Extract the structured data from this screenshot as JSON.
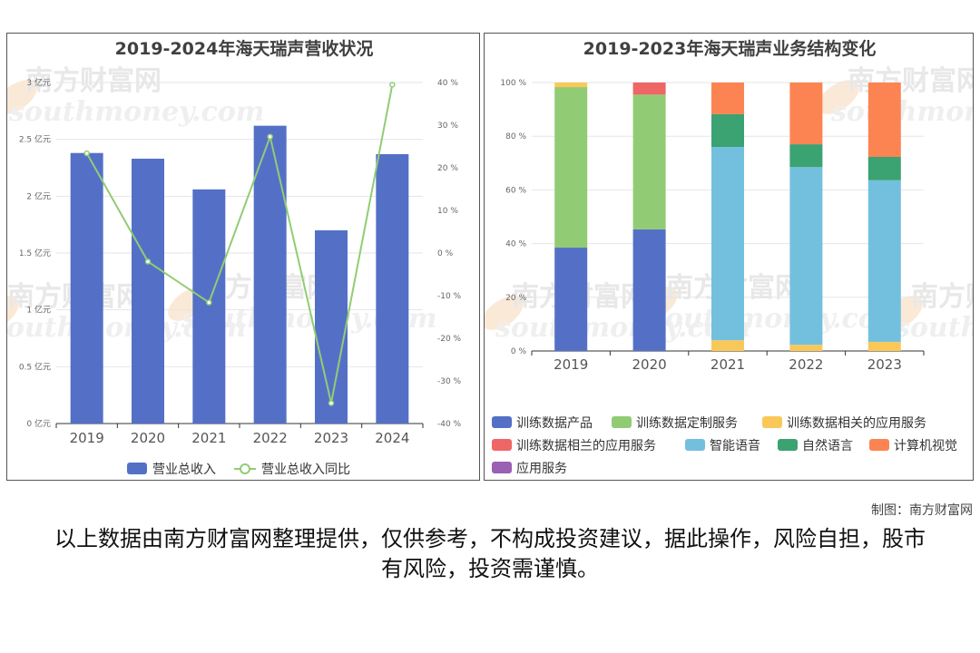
{
  "chart_data": [
    {
      "type": "bar",
      "title": "2019-2024年海天瑞声营收状况",
      "categories": [
        "2019",
        "2020",
        "2021",
        "2022",
        "2023",
        "2024"
      ],
      "y_ticks_left": [
        "0 亿元",
        "0.5 亿元",
        "1 亿元",
        "1.5 亿元",
        "2 亿元",
        "2.5 亿元",
        "3 亿元"
      ],
      "y_ticks_right": [
        "-40 %",
        "-30 %",
        "-20 %",
        "-10 %",
        "0 %",
        "10 %",
        "20 %",
        "30 %",
        "40 %"
      ],
      "ylim_left": [
        0,
        3
      ],
      "ylim_right": [
        -40,
        40
      ],
      "series": [
        {
          "name": "营业总收入",
          "type": "bar",
          "values": [
            2.38,
            2.33,
            2.06,
            2.62,
            1.7,
            2.37
          ],
          "color": "#5470c6"
        },
        {
          "name": "营业总收入同比",
          "type": "line",
          "axis": "right",
          "values": [
            23.4,
            -2.0,
            -11.6,
            27.3,
            -35.2,
            39.5
          ],
          "color": "#91cc75"
        }
      ],
      "legend_position": "bottom"
    },
    {
      "type": "bar",
      "stacked": true,
      "title": "2019-2023年海天瑞声业务结构变化",
      "categories": [
        "2019",
        "2020",
        "2021",
        "2022",
        "2023"
      ],
      "y_ticks": [
        "0 %",
        "20 %",
        "40 %",
        "60 %",
        "80 %",
        "100 %"
      ],
      "ylim": [
        0,
        100
      ],
      "series": [
        {
          "name": "训练数据产品",
          "values": [
            38.5,
            45.3,
            0,
            0,
            0
          ],
          "color": "#5470c6"
        },
        {
          "name": "训练数据定制服务",
          "values": [
            59.8,
            50.2,
            0,
            0,
            0
          ],
          "color": "#91cc75"
        },
        {
          "name": "训练数据相关的应用服务",
          "values": [
            1.7,
            0,
            4.0,
            2.3,
            3.4
          ],
          "color": "#fac858"
        },
        {
          "name": "训练数据相兰的应用服务",
          "values": [
            0,
            4.5,
            0,
            0,
            0
          ],
          "color": "#ee6666"
        },
        {
          "name": "智能语音",
          "values": [
            0,
            0,
            72.0,
            66.2,
            60.2
          ],
          "color": "#73c0de"
        },
        {
          "name": "自然语言",
          "values": [
            0,
            0,
            12.2,
            8.5,
            8.7
          ],
          "color": "#3ba272"
        },
        {
          "name": "计算机视觉",
          "values": [
            0,
            0,
            11.8,
            23.0,
            27.7
          ],
          "color": "#fc8452"
        },
        {
          "name": "应用服务",
          "values": [
            0,
            0,
            0,
            0,
            0
          ],
          "color": "#9a60b4"
        }
      ],
      "legend_position": "bottom"
    }
  ],
  "watermark": {
    "cn": "南方财富网",
    "en": "southmoney.com"
  },
  "credit": "制图：南方财富网",
  "disclaimer": "以上数据由南方财富网整理提供，仅供参考，不构成投资建议，据此操作，风险自担，股市有风险，投资需谨慎。"
}
